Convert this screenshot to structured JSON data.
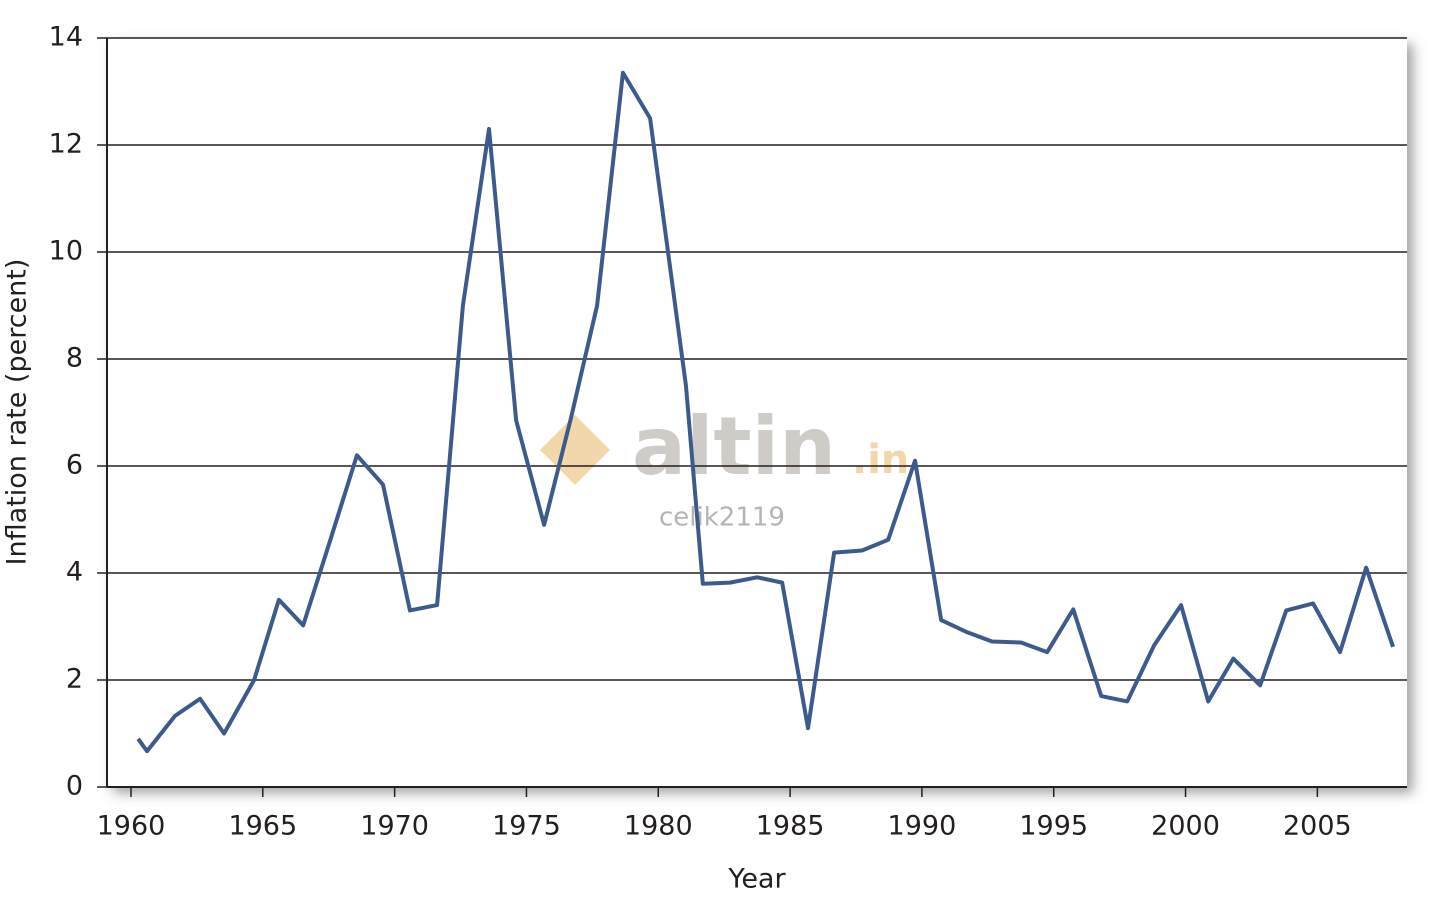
{
  "chart_data": {
    "type": "line",
    "x_label": "Year",
    "y_label": "Inflation rate (percent)",
    "x": [
      1960.27,
      1960.61,
      1961.67,
      1962.62,
      1963.53,
      1964.67,
      1965.61,
      1966.53,
      1967.55,
      1968.57,
      1969.56,
      1970.58,
      1971.61,
      1972.59,
      1973.58,
      1974.61,
      1975.67,
      1976.69,
      1977.68,
      1978.66,
      1979.69,
      1981.05,
      1981.69,
      1982.72,
      1983.75,
      1984.7,
      1985.68,
      1986.67,
      1987.73,
      1988.72,
      1989.74,
      1990.73,
      1991.68,
      1992.66,
      1993.76,
      1994.75,
      1995.74,
      1996.8,
      1997.79,
      1998.81,
      1999.83,
      2000.86,
      2001.81,
      2002.83,
      2003.82,
      2004.84,
      2005.86,
      2006.85,
      2007.87
    ],
    "series": [
      {
        "name": "Inflation rate",
        "color": "#3d5a8c",
        "values": [
          0.9,
          0.67,
          1.33,
          1.65,
          1.0,
          2.0,
          3.5,
          3.02,
          4.6,
          6.2,
          5.65,
          3.3,
          3.4,
          9.0,
          12.3,
          6.85,
          4.9,
          6.9,
          9.0,
          13.35,
          12.5,
          7.5,
          3.8,
          3.82,
          3.92,
          3.82,
          1.1,
          4.38,
          4.42,
          4.62,
          6.1,
          3.12,
          2.9,
          2.72,
          2.7,
          2.52,
          3.32,
          1.7,
          1.6,
          2.65,
          3.4,
          1.6,
          2.4,
          1.9,
          3.3,
          3.43,
          2.52,
          4.1,
          2.62
        ]
      }
    ],
    "xlim": [
      1959.09,
      2008.4
    ],
    "xticks": [
      1960,
      1965,
      1970,
      1975,
      1980,
      1985,
      1990,
      1995,
      2000,
      2005
    ],
    "ylim": [
      0,
      14
    ],
    "yticks": [
      0,
      2,
      4,
      6,
      8,
      10,
      12,
      14
    ],
    "grid": true
  },
  "watermark": {
    "brand": "altin",
    "domain": ".in",
    "user": "celik2119"
  }
}
